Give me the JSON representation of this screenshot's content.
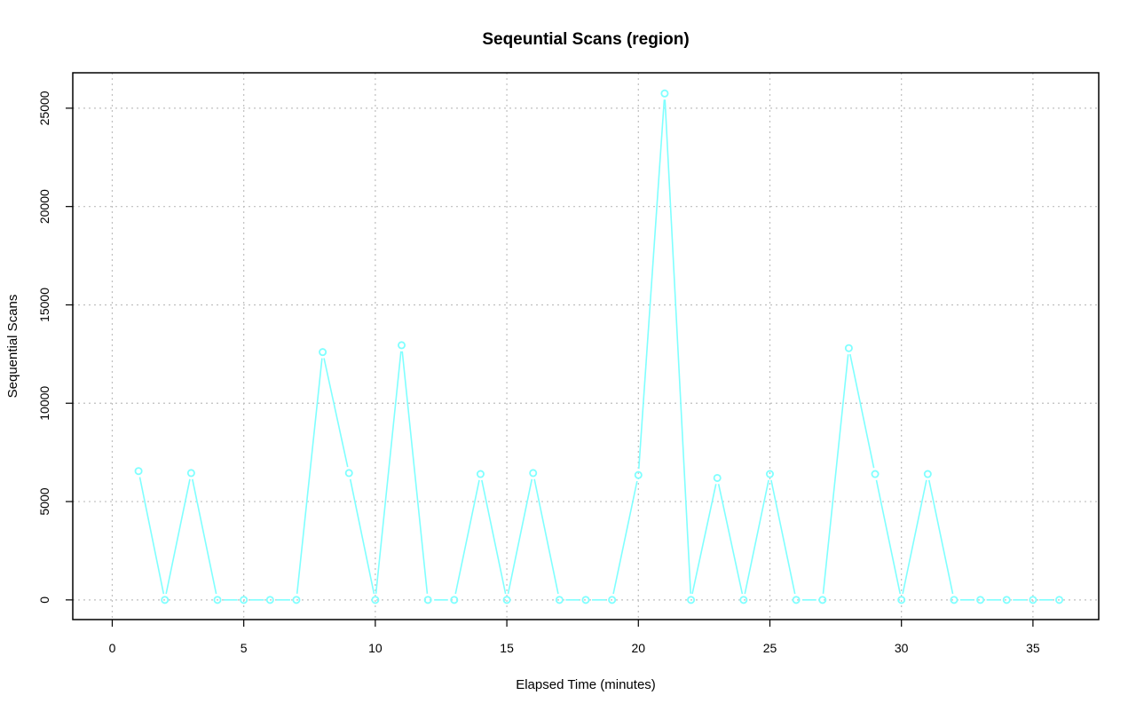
{
  "chart_data": {
    "type": "line",
    "title": "Seqeuntial Scans (region)",
    "xlabel": "Elapsed Time (minutes)",
    "ylabel": "Sequential Scans",
    "xlim": [
      -1.5,
      37.5
    ],
    "ylim": [
      -1000,
      26800
    ],
    "xticks": [
      0,
      5,
      10,
      15,
      20,
      25,
      30,
      35
    ],
    "yticks": [
      0,
      5000,
      10000,
      15000,
      20000,
      25000
    ],
    "grid": true,
    "series": [
      {
        "color": "#7fffff",
        "marker": "open-circle",
        "x": [
          1,
          2,
          3,
          4,
          5,
          6,
          7,
          8,
          9,
          10,
          11,
          12,
          13,
          14,
          15,
          16,
          17,
          18,
          19,
          20,
          21,
          22,
          23,
          24,
          25,
          26,
          27,
          28,
          29,
          30,
          31,
          32,
          33,
          34,
          35,
          36
        ],
        "values": [
          6550,
          0,
          6450,
          0,
          0,
          0,
          0,
          12600,
          6450,
          0,
          12950,
          0,
          0,
          6400,
          0,
          6450,
          0,
          0,
          0,
          6350,
          25750,
          0,
          6200,
          0,
          6400,
          0,
          0,
          12800,
          6400,
          0,
          6400,
          0,
          0,
          0,
          0,
          0
        ]
      }
    ]
  }
}
